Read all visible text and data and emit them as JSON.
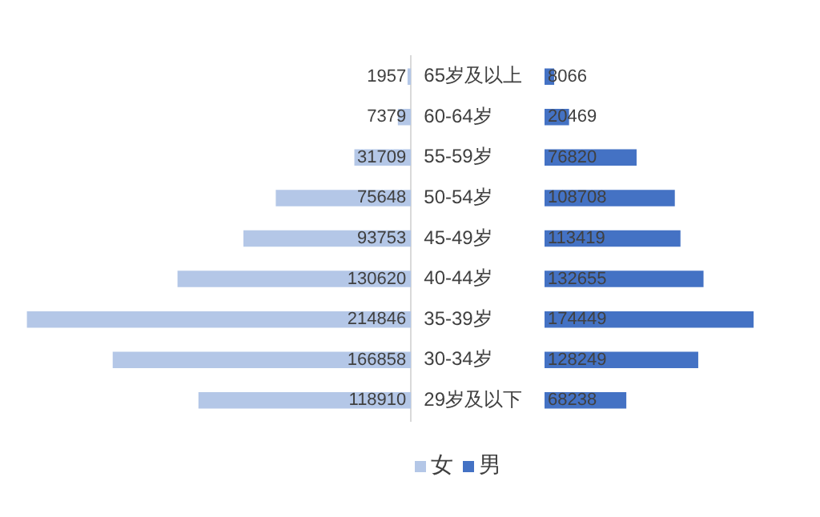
{
  "chart_data": [
    {
      "type": "bar",
      "orientation": "horizontal",
      "categories": [
        "65岁及以上",
        "60-64岁",
        "55-59岁",
        "50-54岁",
        "45-49岁",
        "40-44岁",
        "35-39岁",
        "30-34岁",
        "29岁及以下"
      ],
      "tick_labels": "y",
      "data_labels": true,
      "legend": "bottom",
      "series": [
        {
          "name": "女",
          "color": "#b4c7e7",
          "values": [
            1957,
            7379,
            31709,
            75648,
            93753,
            130620,
            214846,
            166858,
            118910
          ]
        }
      ]
    },
    {
      "type": "bar",
      "orientation": "horizontal",
      "categories": [
        null,
        null,
        null,
        null,
        null,
        null,
        null,
        null,
        null
      ],
      "tick_labels": false,
      "data_labels": true,
      "legend": "bottom",
      "series": [
        {
          "name": "男",
          "color": "#4472c4",
          "values": [
            8066,
            20469,
            76820,
            108708,
            113419,
            132655,
            174449,
            128249,
            68238
          ]
        }
      ]
    }
  ]
}
